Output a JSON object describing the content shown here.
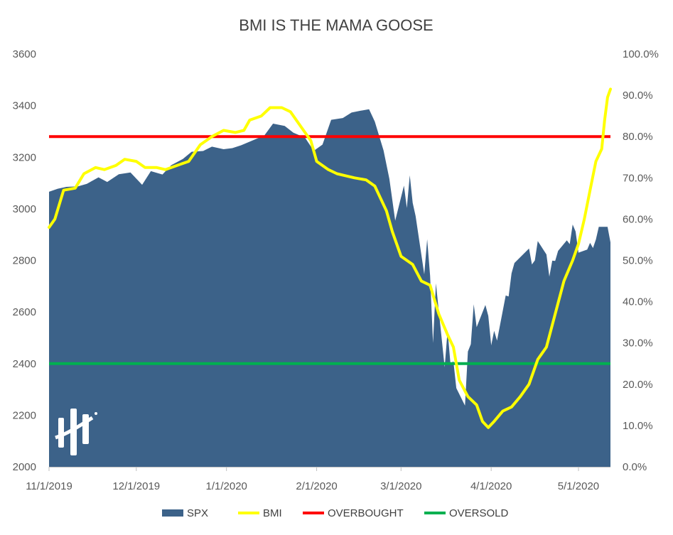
{
  "chart_data": {
    "type": "area",
    "title": "BMI IS THE MAMA GOOSE",
    "x_tick_labels": [
      "11/1/2019",
      "12/1/2019",
      "1/1/2020",
      "2/1/2020",
      "3/1/2020",
      "4/1/2020",
      "5/1/2020"
    ],
    "x_range": [
      "2019-11-01",
      "2020-05-12"
    ],
    "y_left": {
      "ticks": [
        "2000",
        "2200",
        "2400",
        "2600",
        "2800",
        "3000",
        "3200",
        "3400",
        "3600"
      ],
      "range": [
        2000,
        3600
      ]
    },
    "y_right": {
      "ticks": [
        "0.0%",
        "10.0%",
        "20.0%",
        "30.0%",
        "40.0%",
        "50.0%",
        "60.0%",
        "70.0%",
        "80.0%",
        "90.0%",
        "100.0%"
      ],
      "range": [
        0,
        100
      ]
    },
    "grid": false,
    "legend_position": "bottom",
    "legend": [
      {
        "label": "SPX",
        "color": "#3c6289",
        "kind": "area"
      },
      {
        "label": "BMI",
        "color": "#ffff00",
        "kind": "line"
      },
      {
        "label": "OVERBOUGHT",
        "color": "#ff0000",
        "kind": "line"
      },
      {
        "label": "OVERSOLD",
        "color": "#00b050",
        "kind": "line"
      }
    ],
    "series": [
      {
        "name": "SPX",
        "axis": "left",
        "type": "area",
        "color": "#3c6289",
        "points": [
          [
            "2019-11-01",
            3066
          ],
          [
            "2019-11-04",
            3078
          ],
          [
            "2019-11-07",
            3085
          ],
          [
            "2019-11-11",
            3087
          ],
          [
            "2019-11-14",
            3097
          ],
          [
            "2019-11-18",
            3122
          ],
          [
            "2019-11-21",
            3104
          ],
          [
            "2019-11-25",
            3134
          ],
          [
            "2019-11-29",
            3141
          ],
          [
            "2019-12-03",
            3093
          ],
          [
            "2019-12-06",
            3146
          ],
          [
            "2019-12-10",
            3133
          ],
          [
            "2019-12-13",
            3169
          ],
          [
            "2019-12-17",
            3193
          ],
          [
            "2019-12-20",
            3221
          ],
          [
            "2019-12-24",
            3224
          ],
          [
            "2019-12-27",
            3241
          ],
          [
            "2019-12-31",
            3231
          ],
          [
            "2020-01-03",
            3235
          ],
          [
            "2020-01-06",
            3246
          ],
          [
            "2020-01-10",
            3265
          ],
          [
            "2020-01-14",
            3284
          ],
          [
            "2020-01-17",
            3330
          ],
          [
            "2020-01-21",
            3321
          ],
          [
            "2020-01-24",
            3295
          ],
          [
            "2020-01-28",
            3276
          ],
          [
            "2020-01-31",
            3225
          ],
          [
            "2020-02-03",
            3249
          ],
          [
            "2020-02-06",
            3345
          ],
          [
            "2020-02-10",
            3352
          ],
          [
            "2020-02-13",
            3373
          ],
          [
            "2020-02-16",
            3380
          ],
          [
            "2020-02-19",
            3386
          ],
          [
            "2020-02-21",
            3338
          ],
          [
            "2020-02-24",
            3226
          ],
          [
            "2020-02-26",
            3116
          ],
          [
            "2020-02-28",
            2954
          ],
          [
            "2020-03-02",
            3090
          ],
          [
            "2020-03-03",
            3003
          ],
          [
            "2020-03-04",
            3130
          ],
          [
            "2020-03-05",
            3023
          ],
          [
            "2020-03-06",
            2972
          ],
          [
            "2020-03-09",
            2746
          ],
          [
            "2020-03-10",
            2882
          ],
          [
            "2020-03-11",
            2741
          ],
          [
            "2020-03-12",
            2480
          ],
          [
            "2020-03-13",
            2711
          ],
          [
            "2020-03-16",
            2386
          ],
          [
            "2020-03-17",
            2529
          ],
          [
            "2020-03-18",
            2398
          ],
          [
            "2020-03-19",
            2409
          ],
          [
            "2020-03-20",
            2305
          ],
          [
            "2020-03-23",
            2237
          ],
          [
            "2020-03-24",
            2447
          ],
          [
            "2020-03-25",
            2475
          ],
          [
            "2020-03-26",
            2630
          ],
          [
            "2020-03-27",
            2541
          ],
          [
            "2020-03-30",
            2627
          ],
          [
            "2020-03-31",
            2585
          ],
          [
            "2020-04-01",
            2471
          ],
          [
            "2020-04-02",
            2527
          ],
          [
            "2020-04-03",
            2489
          ],
          [
            "2020-04-06",
            2664
          ],
          [
            "2020-04-07",
            2660
          ],
          [
            "2020-04-08",
            2750
          ],
          [
            "2020-04-09",
            2790
          ],
          [
            "2020-04-14",
            2846
          ],
          [
            "2020-04-15",
            2784
          ],
          [
            "2020-04-16",
            2800
          ],
          [
            "2020-04-17",
            2875
          ],
          [
            "2020-04-20",
            2823
          ],
          [
            "2020-04-21",
            2737
          ],
          [
            "2020-04-22",
            2799
          ],
          [
            "2020-04-23",
            2798
          ],
          [
            "2020-04-24",
            2837
          ],
          [
            "2020-04-27",
            2878
          ],
          [
            "2020-04-28",
            2863
          ],
          [
            "2020-04-29",
            2939
          ],
          [
            "2020-04-30",
            2912
          ],
          [
            "2020-05-01",
            2830
          ],
          [
            "2020-05-04",
            2842
          ],
          [
            "2020-05-05",
            2868
          ],
          [
            "2020-05-06",
            2848
          ],
          [
            "2020-05-07",
            2881
          ],
          [
            "2020-05-08",
            2930
          ],
          [
            "2020-05-11",
            2930
          ],
          [
            "2020-05-12",
            2870
          ]
        ]
      },
      {
        "name": "BMI",
        "axis": "right",
        "type": "line",
        "color": "#ffff00",
        "points": [
          [
            "2019-11-01",
            58.0
          ],
          [
            "2019-11-03",
            60.0
          ],
          [
            "2019-11-06",
            67.0
          ],
          [
            "2019-11-10",
            67.5
          ],
          [
            "2019-11-13",
            71.0
          ],
          [
            "2019-11-17",
            72.5
          ],
          [
            "2019-11-20",
            72.0
          ],
          [
            "2019-11-24",
            73.0
          ],
          [
            "2019-11-27",
            74.5
          ],
          [
            "2019-12-01",
            74.0
          ],
          [
            "2019-12-04",
            72.5
          ],
          [
            "2019-12-08",
            72.5
          ],
          [
            "2019-12-11",
            72.0
          ],
          [
            "2019-12-15",
            73.0
          ],
          [
            "2019-12-19",
            74.0
          ],
          [
            "2019-12-23",
            78.0
          ],
          [
            "2019-12-27",
            80.0
          ],
          [
            "2019-12-31",
            81.5
          ],
          [
            "2020-01-04",
            81.0
          ],
          [
            "2020-01-07",
            81.5
          ],
          [
            "2020-01-09",
            84.0
          ],
          [
            "2020-01-13",
            85.0
          ],
          [
            "2020-01-16",
            87.0
          ],
          [
            "2020-01-20",
            87.0
          ],
          [
            "2020-01-23",
            86.0
          ],
          [
            "2020-01-27",
            82.0
          ],
          [
            "2020-01-30",
            79.0
          ],
          [
            "2020-02-01",
            74.0
          ],
          [
            "2020-02-05",
            72.0
          ],
          [
            "2020-02-08",
            71.0
          ],
          [
            "2020-02-11",
            70.5
          ],
          [
            "2020-02-14",
            70.0
          ],
          [
            "2020-02-18",
            69.5
          ],
          [
            "2020-02-21",
            68.0
          ],
          [
            "2020-02-25",
            62.0
          ],
          [
            "2020-02-27",
            57.0
          ],
          [
            "2020-03-01",
            51.0
          ],
          [
            "2020-03-05",
            49.0
          ],
          [
            "2020-03-08",
            45.0
          ],
          [
            "2020-03-11",
            44.0
          ],
          [
            "2020-03-14",
            37.0
          ],
          [
            "2020-03-17",
            32.0
          ],
          [
            "2020-03-19",
            29.0
          ],
          [
            "2020-03-21",
            21.0
          ],
          [
            "2020-03-24",
            17.0
          ],
          [
            "2020-03-27",
            15.0
          ],
          [
            "2020-03-29",
            11.0
          ],
          [
            "2020-03-31",
            9.5
          ],
          [
            "2020-04-02",
            11.0
          ],
          [
            "2020-04-05",
            13.5
          ],
          [
            "2020-04-08",
            14.5
          ],
          [
            "2020-04-11",
            17.0
          ],
          [
            "2020-04-14",
            20.0
          ],
          [
            "2020-04-17",
            26.0
          ],
          [
            "2020-04-20",
            29.0
          ],
          [
            "2020-04-23",
            37.0
          ],
          [
            "2020-04-26",
            45.0
          ],
          [
            "2020-04-29",
            50.0
          ],
          [
            "2020-05-01",
            54.0
          ],
          [
            "2020-05-03",
            60.0
          ],
          [
            "2020-05-05",
            67.0
          ],
          [
            "2020-05-07",
            74.0
          ],
          [
            "2020-05-09",
            77.0
          ],
          [
            "2020-05-10",
            84.0
          ],
          [
            "2020-05-11",
            89.5
          ],
          [
            "2020-05-12",
            91.5
          ]
        ]
      },
      {
        "name": "OVERBOUGHT",
        "axis": "right",
        "type": "line",
        "color": "#ff0000",
        "value": 80
      },
      {
        "name": "OVERSOLD",
        "axis": "right",
        "type": "line",
        "color": "#00b050",
        "value": 25
      }
    ],
    "logo": {
      "name": "hedgeye-logo",
      "color": "#ffffff"
    }
  }
}
